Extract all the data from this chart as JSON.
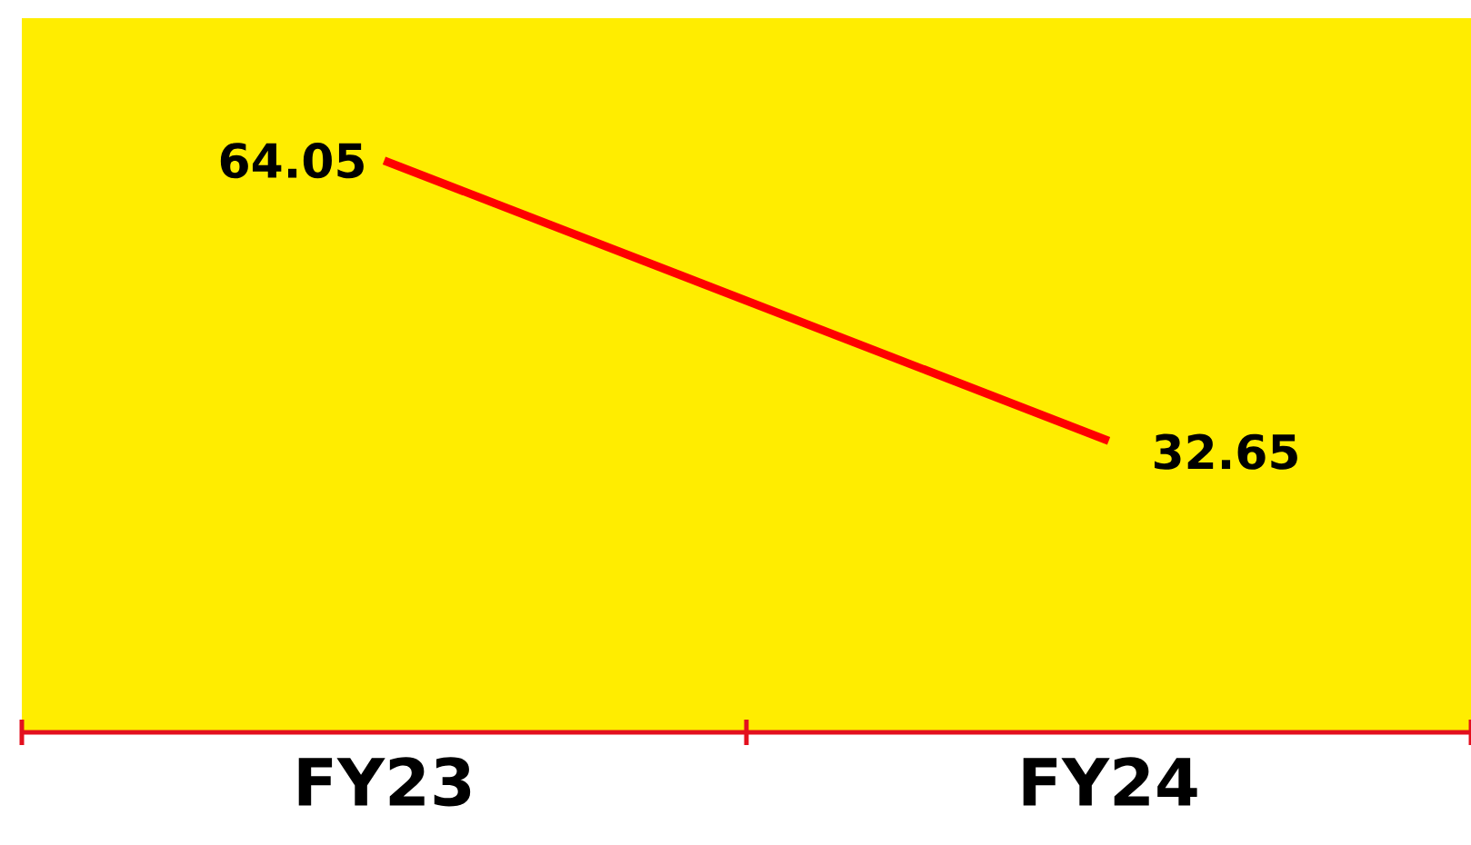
{
  "chart_data": {
    "type": "line",
    "categories": [
      "FY23",
      "FY24"
    ],
    "series": [
      {
        "color": "#ff0000",
        "values": [
          64.05,
          32.65
        ]
      }
    ],
    "ylim": [
      0,
      80
    ],
    "data_labels": true,
    "tick_labels": "x",
    "line_style": "solid"
  }
}
